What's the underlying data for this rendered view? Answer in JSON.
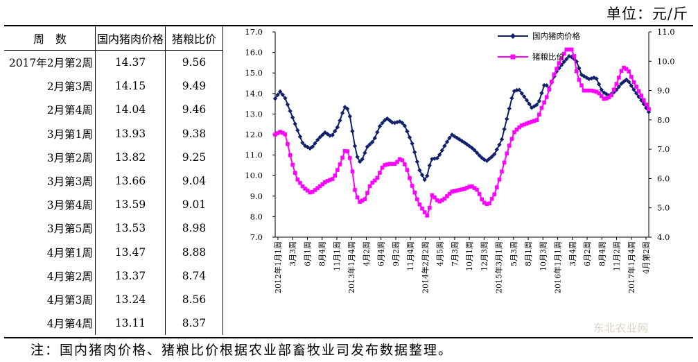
{
  "unit_label": "单位：元/斤",
  "note": "注：国内猪肉价格、猪粮比价根据农业部畜牧业司发布数据整理。",
  "watermark": "东北农业网",
  "table": {
    "headers": [
      "周　数",
      "国内猪肉价格",
      "猪粮比价"
    ],
    "rows": [
      [
        "2017年2月第2周",
        "14.37",
        "9.56"
      ],
      [
        "2月第3周",
        "14.15",
        "9.49"
      ],
      [
        "2月第4周",
        "14.04",
        "9.46"
      ],
      [
        "3月第1周",
        "13.93",
        "9.38"
      ],
      [
        "3月第2周",
        "13.82",
        "9.25"
      ],
      [
        "3月第3周",
        "13.66",
        "9.04"
      ],
      [
        "3月第4周",
        "13.59",
        "9.01"
      ],
      [
        "3月第5周",
        "13.53",
        "8.98"
      ],
      [
        "4月第1周",
        "13.47",
        "8.88"
      ],
      [
        "4月第2周",
        "13.37",
        "8.74"
      ],
      [
        "4月第3周",
        "13.24",
        "8.56"
      ],
      [
        "4月第4周",
        "13.11",
        "8.37"
      ]
    ]
  },
  "chart_data": {
    "type": "line",
    "x_tick_labels": [
      "2012年1月1周",
      "3月3周",
      "6月1周",
      "8月4周",
      "11月1周",
      "2013年1月4周",
      "4月2周",
      "6月4周",
      "9月2周",
      "11月4周",
      "2014年2月2周",
      "4月5周",
      "7月3周",
      "10月1周",
      "12月3周",
      "2015年3月1周",
      "5月3周",
      "8月1周",
      "10月3周",
      "2016年1月1周",
      "3月4周",
      "6月2周",
      "8月4周",
      "11月2周",
      "2017年1月4周",
      "4月第2周"
    ],
    "y_left": {
      "min": 7.0,
      "max": 17.0,
      "step": 1.0,
      "ticks": [
        "7.0",
        "8.0",
        "9.0",
        "10.0",
        "11.0",
        "12.0",
        "13.0",
        "14.0",
        "15.0",
        "16.0",
        "17.0"
      ]
    },
    "y_right": {
      "min": 4.0,
      "max": 11.0,
      "step": 1.0,
      "ticks": [
        "4.0",
        "5.0",
        "6.0",
        "7.0",
        "8.0",
        "9.0",
        "10.0",
        "11.0"
      ]
    },
    "series": [
      {
        "name": "国内猪肉价格",
        "axis": "left",
        "color": "#10206b",
        "marker": "diamond",
        "keypoints": [
          [
            0,
            13.75
          ],
          [
            0.45,
            14.1
          ],
          [
            0.9,
            13.8
          ],
          [
            2.0,
            12.3
          ],
          [
            2.6,
            11.5
          ],
          [
            3.3,
            11.3
          ],
          [
            4.0,
            11.8
          ],
          [
            4.6,
            12.1
          ],
          [
            5.2,
            11.9
          ],
          [
            5.8,
            12.4
          ],
          [
            6.4,
            13.35
          ],
          [
            6.8,
            13.2
          ],
          [
            7.5,
            11.0
          ],
          [
            7.9,
            10.6
          ],
          [
            8.5,
            11.4
          ],
          [
            9.1,
            11.7
          ],
          [
            9.7,
            12.45
          ],
          [
            10.3,
            12.8
          ],
          [
            10.9,
            12.55
          ],
          [
            11.6,
            12.65
          ],
          [
            12.0,
            12.4
          ],
          [
            12.7,
            11.5
          ],
          [
            13.3,
            10.3
          ],
          [
            13.9,
            9.7
          ],
          [
            14.4,
            10.8
          ],
          [
            15.0,
            10.85
          ],
          [
            15.7,
            11.5
          ],
          [
            16.3,
            12.0
          ],
          [
            16.9,
            11.8
          ],
          [
            17.5,
            11.6
          ],
          [
            18.3,
            11.3
          ],
          [
            19.0,
            10.9
          ],
          [
            19.5,
            10.7
          ],
          [
            20.2,
            11.0
          ],
          [
            20.9,
            11.7
          ],
          [
            21.5,
            13.0
          ],
          [
            22.0,
            14.1
          ],
          [
            22.5,
            14.2
          ],
          [
            23.2,
            13.7
          ],
          [
            23.7,
            13.3
          ],
          [
            24.3,
            13.5
          ],
          [
            24.9,
            14.5
          ],
          [
            25.3,
            14.25
          ],
          [
            25.9,
            15.0
          ],
          [
            26.6,
            15.5
          ],
          [
            27.2,
            15.85
          ],
          [
            27.8,
            15.6
          ],
          [
            28.3,
            14.9
          ],
          [
            29.0,
            14.7
          ],
          [
            29.6,
            14.8
          ],
          [
            30.2,
            14.1
          ],
          [
            30.8,
            13.9
          ],
          [
            31.4,
            14.1
          ],
          [
            32.0,
            14.5
          ],
          [
            32.5,
            14.7
          ],
          [
            33.1,
            14.2
          ],
          [
            33.9,
            13.6
          ],
          [
            34.5,
            13.1
          ]
        ],
        "selected_values": [
          14.37,
          14.15,
          14.04,
          13.93,
          13.82,
          13.66,
          13.59,
          13.53,
          13.47,
          13.37,
          13.24,
          13.11
        ]
      },
      {
        "name": "猪粮比价",
        "axis": "right",
        "color": "#ff00ff",
        "marker": "square",
        "keypoints": [
          [
            0,
            7.5
          ],
          [
            0.5,
            7.6
          ],
          [
            0.95,
            7.5
          ],
          [
            1.5,
            6.6
          ],
          [
            2.0,
            6.0
          ],
          [
            2.6,
            5.7
          ],
          [
            3.3,
            5.5
          ],
          [
            4.0,
            5.7
          ],
          [
            4.7,
            5.9
          ],
          [
            5.4,
            6.0
          ],
          [
            6.0,
            6.5
          ],
          [
            6.55,
            7.05
          ],
          [
            7.0,
            6.6
          ],
          [
            7.4,
            5.5
          ],
          [
            7.8,
            5.2
          ],
          [
            8.3,
            5.3
          ],
          [
            8.8,
            5.8
          ],
          [
            9.4,
            6.0
          ],
          [
            10.0,
            6.45
          ],
          [
            10.6,
            6.5
          ],
          [
            11.1,
            6.5
          ],
          [
            11.6,
            6.7
          ],
          [
            12.1,
            6.4
          ],
          [
            12.6,
            5.8
          ],
          [
            13.2,
            5.2
          ],
          [
            13.7,
            4.9
          ],
          [
            14.1,
            4.7
          ],
          [
            14.5,
            5.45
          ],
          [
            15.1,
            5.2
          ],
          [
            15.6,
            5.3
          ],
          [
            16.3,
            5.55
          ],
          [
            16.9,
            5.6
          ],
          [
            17.5,
            5.65
          ],
          [
            18.1,
            5.75
          ],
          [
            18.7,
            5.6
          ],
          [
            19.2,
            5.2
          ],
          [
            19.7,
            5.1
          ],
          [
            20.3,
            5.5
          ],
          [
            20.9,
            6.2
          ],
          [
            21.5,
            7.0
          ],
          [
            22.1,
            7.6
          ],
          [
            22.7,
            7.8
          ],
          [
            23.4,
            7.9
          ],
          [
            24.2,
            8.0
          ],
          [
            24.6,
            8.4
          ],
          [
            25.1,
            8.8
          ],
          [
            25.7,
            9.5
          ],
          [
            26.3,
            10.0
          ],
          [
            26.9,
            10.4
          ],
          [
            27.5,
            10.4
          ],
          [
            27.9,
            9.5
          ],
          [
            28.5,
            9.0
          ],
          [
            29.2,
            9.0
          ],
          [
            29.8,
            8.95
          ],
          [
            30.4,
            8.7
          ],
          [
            31.0,
            8.8
          ],
          [
            31.6,
            9.3
          ],
          [
            32.1,
            9.8
          ],
          [
            32.6,
            9.7
          ],
          [
            33.1,
            9.3
          ],
          [
            33.7,
            8.9
          ],
          [
            34.5,
            8.37
          ]
        ],
        "selected_values": [
          9.56,
          9.49,
          9.46,
          9.38,
          9.25,
          9.04,
          9.01,
          8.98,
          8.88,
          8.74,
          8.56,
          8.37
        ]
      }
    ],
    "legend_position": "top-left"
  }
}
